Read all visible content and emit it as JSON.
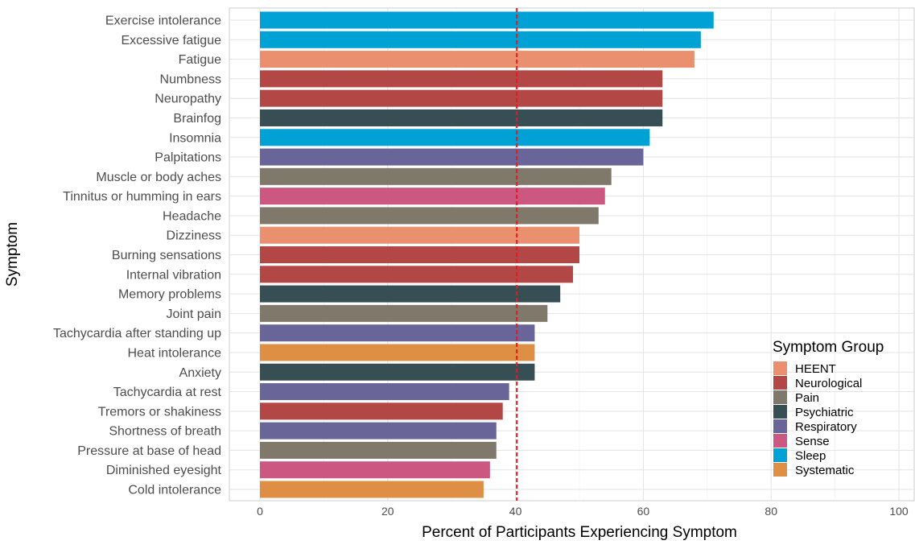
{
  "chart_data": {
    "type": "bar",
    "orientation": "horizontal",
    "xlabel": "Percent of Participants Experiencing Symptom",
    "ylabel": "Symptom",
    "xlim": [
      0,
      100
    ],
    "xticks": [
      0,
      20,
      40,
      60,
      80,
      100
    ],
    "grid": true,
    "reference_line": {
      "x": 40.2,
      "style": "dashed",
      "color": "#E41A1C"
    },
    "categories": [
      "Exercise intolerance",
      "Excessive fatigue",
      "Fatigue",
      "Numbness",
      "Neuropathy",
      "Brainfog",
      "Insomnia",
      "Palpitations",
      "Muscle or body aches",
      "Tinnitus or humming in ears",
      "Headache",
      "Dizziness",
      "Burning sensations",
      "Internal vibration",
      "Memory problems",
      "Joint pain",
      "Tachycardia after standing up",
      "Heat intolerance",
      "Anxiety",
      "Tachycardia at rest",
      "Tremors or shakiness",
      "Shortness of breath",
      "Pressure at base of head",
      "Diminished eyesight",
      "Cold intolerance"
    ],
    "values": [
      71,
      69,
      68,
      63,
      63,
      63,
      61,
      60,
      55,
      54,
      53,
      50,
      50,
      49,
      47,
      45,
      43,
      43,
      43,
      39,
      38,
      37,
      37,
      36,
      35
    ],
    "groups": [
      "Sleep",
      "Sleep",
      "HEENT",
      "Neurological",
      "Neurological",
      "Psychiatric",
      "Sleep",
      "Respiratory",
      "Pain",
      "Sense",
      "Pain",
      "HEENT",
      "Neurological",
      "Neurological",
      "Psychiatric",
      "Pain",
      "Respiratory",
      "Systematic",
      "Psychiatric",
      "Respiratory",
      "Neurological",
      "Respiratory",
      "Pain",
      "Sense",
      "Systematic"
    ],
    "legend": {
      "title": "Symptom Group",
      "placement": "bottom-right",
      "entries": [
        {
          "name": "HEENT",
          "color": "#EB906F"
        },
        {
          "name": "Neurological",
          "color": "#B24745"
        },
        {
          "name": "Pain",
          "color": "#80796B"
        },
        {
          "name": "Psychiatric",
          "color": "#374E55"
        },
        {
          "name": "Respiratory",
          "color": "#6A6599"
        },
        {
          "name": "Sense",
          "color": "#CC5881"
        },
        {
          "name": "Sleep",
          "color": "#00A1D5"
        },
        {
          "name": "Systematic",
          "color": "#DF8F44"
        }
      ]
    }
  }
}
